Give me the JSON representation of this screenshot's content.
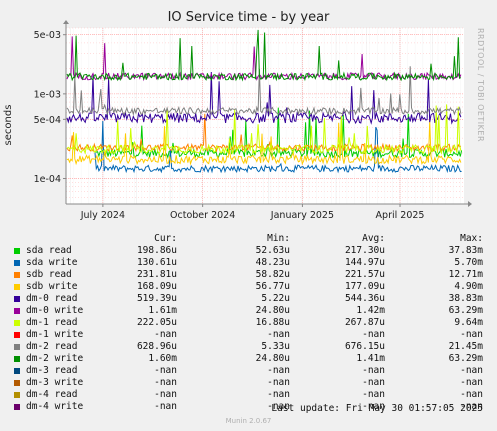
{
  "chart_data": {
    "type": "line",
    "title": "IO Service time - by year",
    "ylabel": "seconds",
    "yscale": "log",
    "ylim": [
      5e-05,
      0.006
    ],
    "y_ticks": [
      {
        "value": 0.005,
        "label": "5e-03"
      },
      {
        "value": 0.001,
        "label": "1e-03"
      },
      {
        "value": 0.0005,
        "label": "5e-04"
      },
      {
        "value": 0.0001,
        "label": "1e-04"
      }
    ],
    "xlim": [
      "2024-05-28",
      "2025-05-30"
    ],
    "x_ticks": [
      {
        "value": "2024-07-01",
        "label": "July 2024"
      },
      {
        "value": "2024-10-01",
        "label": "October 2024"
      },
      {
        "value": "2025-01-01",
        "label": "January 2025"
      },
      {
        "value": "2025-04-01",
        "label": "April 2025"
      }
    ],
    "grid": true,
    "series": [
      {
        "name": "sda read",
        "color": "#00cc00",
        "approx_value": 0.000199
      },
      {
        "name": "sda write",
        "color": "#0066b3",
        "approx_value": 0.000131
      },
      {
        "name": "sdb read",
        "color": "#ff8000",
        "approx_value": 0.000232
      },
      {
        "name": "sdb write",
        "color": "#ffcc00",
        "approx_value": 0.000168
      },
      {
        "name": "dm-0 read",
        "color": "#330099",
        "approx_value": 0.000519
      },
      {
        "name": "dm-0 write",
        "color": "#990099",
        "approx_value": 0.00161
      },
      {
        "name": "dm-1 read",
        "color": "#ccff00",
        "approx_value": 0.000222
      },
      {
        "name": "dm-1 write",
        "color": "#ff0000",
        "approx_value": null
      },
      {
        "name": "dm-2 read",
        "color": "#808080",
        "approx_value": 0.000629
      },
      {
        "name": "dm-2 write",
        "color": "#008f00",
        "approx_value": 0.0016
      },
      {
        "name": "dm-3 read",
        "color": "#00487d",
        "approx_value": null
      },
      {
        "name": "dm-3 write",
        "color": "#b35a00",
        "approx_value": null
      },
      {
        "name": "dm-4 read",
        "color": "#b38f00",
        "approx_value": null
      },
      {
        "name": "dm-4 write",
        "color": "#6b006b",
        "approx_value": null
      }
    ]
  },
  "side_text": "RRDTOOL / TOBI OETIKER",
  "legend": {
    "headers": {
      "cur": "Cur:",
      "min": "Min:",
      "avg": "Avg:",
      "max": "Max:"
    },
    "rows": [
      {
        "name": "sda read",
        "color": "#00cc00",
        "cur": "198.86u",
        "min": "52.63u",
        "avg": "217.30u",
        "max": "37.83m"
      },
      {
        "name": "sda write",
        "color": "#0066b3",
        "cur": "130.61u",
        "min": "48.23u",
        "avg": "144.97u",
        "max": "5.70m"
      },
      {
        "name": "sdb read",
        "color": "#ff8000",
        "cur": "231.81u",
        "min": "58.82u",
        "avg": "221.57u",
        "max": "12.71m"
      },
      {
        "name": "sdb write",
        "color": "#ffcc00",
        "cur": "168.09u",
        "min": "56.77u",
        "avg": "177.09u",
        "max": "4.90m"
      },
      {
        "name": "dm-0 read",
        "color": "#330099",
        "cur": "519.39u",
        "min": "5.22u",
        "avg": "544.36u",
        "max": "38.83m"
      },
      {
        "name": "dm-0 write",
        "color": "#990099",
        "cur": "1.61m",
        "min": "24.80u",
        "avg": "1.42m",
        "max": "63.29m"
      },
      {
        "name": "dm-1 read",
        "color": "#ccff00",
        "cur": "222.05u",
        "min": "16.88u",
        "avg": "267.87u",
        "max": "9.64m"
      },
      {
        "name": "dm-1 write",
        "color": "#ff0000",
        "cur": "-nan",
        "min": "-nan",
        "avg": "-nan",
        "max": "-nan"
      },
      {
        "name": "dm-2 read",
        "color": "#808080",
        "cur": "628.96u",
        "min": "5.33u",
        "avg": "676.15u",
        "max": "21.45m"
      },
      {
        "name": "dm-2 write",
        "color": "#008f00",
        "cur": "1.60m",
        "min": "24.80u",
        "avg": "1.41m",
        "max": "63.29m"
      },
      {
        "name": "dm-3 read",
        "color": "#00487d",
        "cur": "-nan",
        "min": "-nan",
        "avg": "-nan",
        "max": "-nan"
      },
      {
        "name": "dm-3 write",
        "color": "#b35a00",
        "cur": "-nan",
        "min": "-nan",
        "avg": "-nan",
        "max": "-nan"
      },
      {
        "name": "dm-4 read",
        "color": "#b38f00",
        "cur": "-nan",
        "min": "-nan",
        "avg": "-nan",
        "max": "-nan"
      },
      {
        "name": "dm-4 write",
        "color": "#6b006b",
        "cur": "-nan",
        "min": "-nan",
        "avg": "-nan",
        "max": "-nan"
      }
    ]
  },
  "last_update": "Last update: Fri May 30 01:57:05 2025",
  "footer": "Munin 2.0.67"
}
